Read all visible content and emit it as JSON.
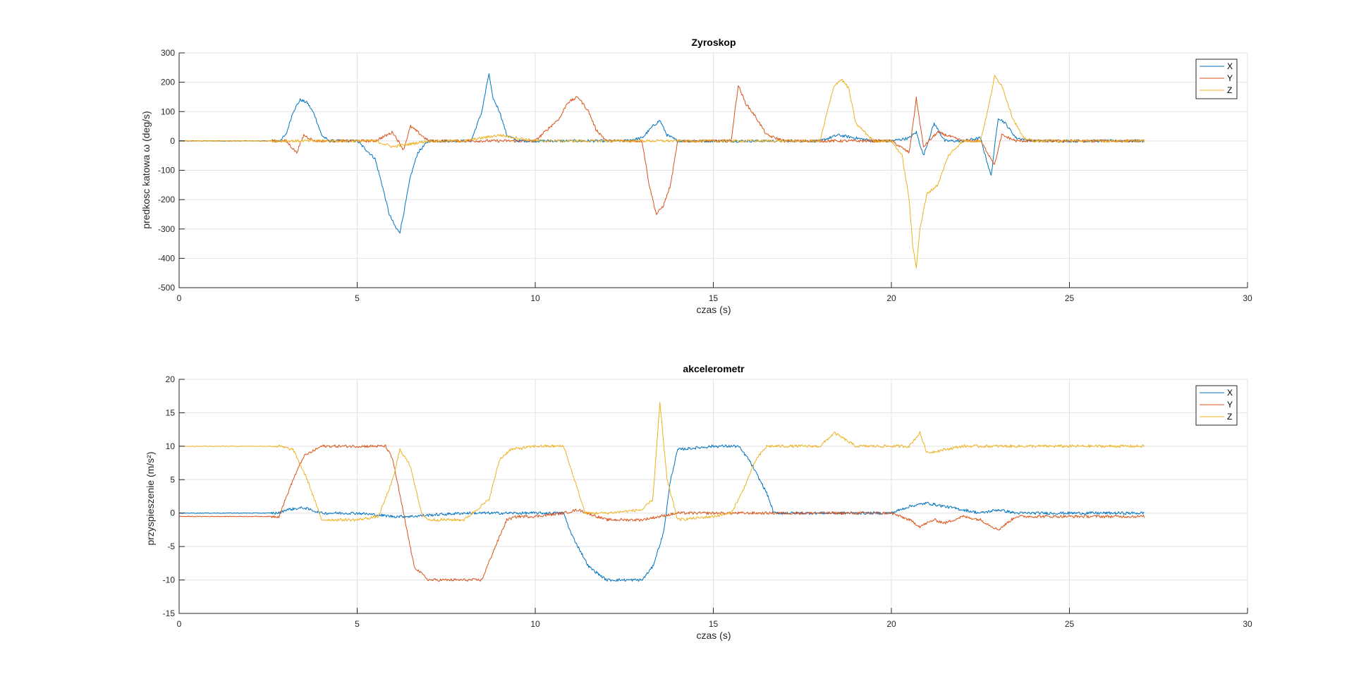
{
  "chart_data": [
    {
      "type": "line",
      "title": "Zyroskop",
      "xlabel": "czas (s)",
      "ylabel": "predkosc katowa ω (deg/s)",
      "xlim": [
        0,
        30
      ],
      "ylim": [
        -500,
        300
      ],
      "xticks": [
        0,
        5,
        10,
        15,
        20,
        25,
        30
      ],
      "yticks": [
        -500,
        -400,
        -300,
        -200,
        -100,
        0,
        100,
        200,
        300
      ],
      "grid": true,
      "legend": "top-right",
      "series": [
        {
          "name": "X",
          "color": "#0072BD",
          "x": [
            0,
            2.8,
            3.0,
            3.2,
            3.4,
            3.6,
            3.8,
            4.0,
            4.2,
            4.5,
            5.0,
            5.5,
            5.7,
            5.9,
            6.1,
            6.2,
            6.3,
            6.5,
            6.7,
            7.0,
            7.5,
            8.2,
            8.5,
            8.7,
            8.8,
            9.0,
            9.2,
            9.5,
            10.0,
            11.0,
            12.5,
            13.0,
            13.3,
            13.5,
            13.7,
            14.0,
            14.5,
            15.0,
            16.0,
            17.0,
            18.0,
            18.5,
            19.0,
            19.5,
            20.0,
            20.5,
            20.7,
            20.9,
            21.2,
            21.5,
            22.0,
            22.5,
            22.8,
            23.0,
            23.2,
            23.5,
            24.0,
            25.0,
            26.0,
            27.1
          ],
          "values": [
            0,
            0,
            20,
            100,
            140,
            130,
            90,
            20,
            0,
            0,
            0,
            -60,
            -150,
            -250,
            -300,
            -310,
            -250,
            -120,
            -40,
            0,
            0,
            0,
            100,
            230,
            150,
            100,
            20,
            0,
            0,
            0,
            0,
            10,
            50,
            70,
            20,
            0,
            0,
            0,
            0,
            0,
            0,
            20,
            10,
            0,
            0,
            10,
            30,
            -50,
            60,
            0,
            0,
            10,
            -120,
            80,
            60,
            10,
            0,
            0,
            0,
            0
          ]
        },
        {
          "name": "Y",
          "color": "#D95319",
          "x": [
            0,
            3.0,
            3.3,
            3.5,
            3.8,
            4.5,
            5.5,
            6.0,
            6.3,
            6.5,
            7.0,
            8.0,
            9.0,
            10.0,
            10.7,
            10.9,
            11.2,
            11.5,
            11.7,
            12.0,
            13.0,
            13.2,
            13.4,
            13.6,
            13.8,
            14.0,
            14.5,
            15.5,
            15.7,
            15.9,
            16.2,
            16.5,
            17.0,
            18.0,
            19.0,
            20.0,
            20.5,
            20.7,
            20.9,
            21.3,
            22.0,
            22.5,
            22.9,
            23.1,
            23.5,
            24.0,
            25.0,
            26.0,
            27.1
          ],
          "values": [
            0,
            0,
            -40,
            20,
            0,
            0,
            0,
            30,
            -30,
            50,
            0,
            0,
            0,
            0,
            80,
            130,
            150,
            100,
            40,
            0,
            0,
            -150,
            -250,
            -220,
            -150,
            0,
            0,
            0,
            190,
            130,
            80,
            20,
            0,
            0,
            0,
            0,
            -40,
            145,
            -20,
            30,
            0,
            0,
            -80,
            20,
            0,
            0,
            0,
            0,
            0
          ]
        },
        {
          "name": "Z",
          "color": "#EDB120",
          "x": [
            0,
            3.0,
            3.5,
            4.0,
            5.5,
            6.0,
            6.5,
            7.0,
            8.0,
            9.0,
            10.0,
            11.0,
            13.0,
            13.5,
            14.0,
            15.0,
            17.0,
            18.0,
            18.2,
            18.4,
            18.6,
            18.8,
            19.0,
            19.5,
            20.0,
            20.3,
            20.5,
            20.6,
            20.7,
            20.8,
            21.0,
            21.3,
            21.6,
            22.0,
            22.5,
            22.7,
            22.9,
            23.1,
            23.4,
            23.7,
            24.0,
            25.0,
            26.0,
            27.1
          ],
          "values": [
            0,
            0,
            0,
            0,
            0,
            -20,
            -10,
            0,
            0,
            20,
            0,
            0,
            0,
            0,
            0,
            0,
            0,
            0,
            100,
            190,
            210,
            180,
            60,
            0,
            0,
            -50,
            -200,
            -360,
            -430,
            -300,
            -180,
            -150,
            -50,
            0,
            0,
            100,
            220,
            190,
            80,
            10,
            0,
            0,
            0,
            0
          ]
        }
      ]
    },
    {
      "type": "line",
      "title": "akcelerometr",
      "xlabel": "czas (s)",
      "ylabel": "przyspieszenie (m/s²)",
      "xlim": [
        0,
        30
      ],
      "ylim": [
        -15,
        20
      ],
      "xticks": [
        0,
        5,
        10,
        15,
        20,
        25,
        30
      ],
      "yticks": [
        -15,
        -10,
        -5,
        0,
        5,
        10,
        15,
        20
      ],
      "grid": true,
      "legend": "top-right",
      "series": [
        {
          "name": "X",
          "color": "#0072BD",
          "x": [
            0,
            2.8,
            3.0,
            3.5,
            4.0,
            4.5,
            5.0,
            6.0,
            6.5,
            7.0,
            8.0,
            9.0,
            10.0,
            10.8,
            11.0,
            11.5,
            12.0,
            13.0,
            13.3,
            13.6,
            13.8,
            14.0,
            15.0,
            15.7,
            16.0,
            16.5,
            16.7,
            17.0,
            18.0,
            19.0,
            20.0,
            20.5,
            21.0,
            21.5,
            22.0,
            22.5,
            23.0,
            23.5,
            24.0,
            25.0,
            26.0,
            27.1
          ],
          "values": [
            0,
            0,
            0.5,
            0.8,
            0,
            0,
            0,
            -0.5,
            -0.5,
            -0.3,
            0,
            0,
            0,
            0,
            -3,
            -8,
            -10,
            -10,
            -8,
            -3,
            5,
            9.5,
            10,
            10,
            8,
            3,
            0,
            0,
            0,
            0,
            0,
            1,
            1.5,
            1,
            0.5,
            0,
            0.5,
            0,
            0,
            0,
            0,
            0
          ]
        },
        {
          "name": "Y",
          "color": "#D95319",
          "x": [
            0,
            2.8,
            3.2,
            3.5,
            4.0,
            5.0,
            5.8,
            6.0,
            6.3,
            6.6,
            7.0,
            8.0,
            8.5,
            8.8,
            9.2,
            9.5,
            10.0,
            10.8,
            11.2,
            12.0,
            13.0,
            13.5,
            14.0,
            15.0,
            17.0,
            18.0,
            19.0,
            20.0,
            20.5,
            20.8,
            21.2,
            21.5,
            22.0,
            22.5,
            23.0,
            23.5,
            24.0,
            25.0,
            26.0,
            27.1
          ],
          "values": [
            -0.5,
            -0.5,
            5,
            8.5,
            10,
            10,
            10,
            8,
            0,
            -8,
            -10,
            -10,
            -10,
            -6,
            -1,
            -0.5,
            -0.5,
            0,
            0.5,
            -1,
            -1,
            -0.5,
            0,
            0,
            0,
            0,
            0,
            0,
            -1,
            -2,
            -1,
            -1.5,
            -0.5,
            -1,
            -2.5,
            -0.5,
            -0.5,
            -0.5,
            -0.5,
            -0.5
          ]
        },
        {
          "name": "Z",
          "color": "#EDB120",
          "x": [
            0,
            2.8,
            3.2,
            3.6,
            4.0,
            5.0,
            5.6,
            6.0,
            6.2,
            6.5,
            6.8,
            7.0,
            8.0,
            8.7,
            9.0,
            9.3,
            10.0,
            10.8,
            11.1,
            11.4,
            12.0,
            13.0,
            13.3,
            13.5,
            13.7,
            14.0,
            15.0,
            15.5,
            15.8,
            16.2,
            16.5,
            17.0,
            18.0,
            18.4,
            19.0,
            20.0,
            20.5,
            20.8,
            21.0,
            22.0,
            23.0,
            24.0,
            25.0,
            26.0,
            27.1
          ],
          "values": [
            10,
            10,
            9.5,
            5,
            -1,
            -1,
            -0.5,
            5,
            9.5,
            7,
            0,
            -1,
            -1,
            2,
            8,
            9.5,
            10,
            10,
            5,
            0,
            0,
            0.5,
            2,
            16.5,
            5,
            -1,
            -0.5,
            0,
            3,
            8,
            10,
            10,
            10,
            12,
            10,
            10,
            10,
            12,
            9,
            10,
            10,
            10,
            10,
            10,
            10
          ]
        }
      ]
    }
  ]
}
